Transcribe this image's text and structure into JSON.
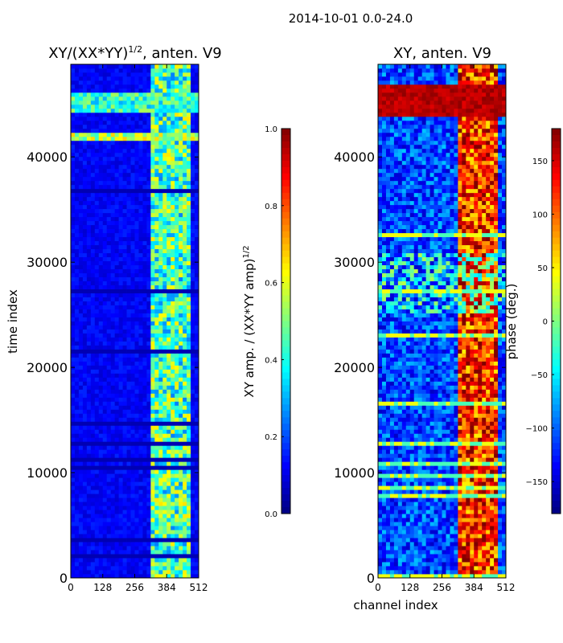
{
  "figure": {
    "suptitle": "2014-10-01 0.0-24.0"
  },
  "chart_data": [
    {
      "type": "heatmap",
      "panel": "left",
      "title_main": "XY/(XX*YY)",
      "title_sup": "1/2",
      "title_suffix": ", anten. V9",
      "ylabel": "time index",
      "xlabel": "",
      "x_range": [
        0,
        512
      ],
      "y_range": [
        0,
        48800
      ],
      "x_ticks": [
        0,
        128,
        256,
        384,
        512
      ],
      "y_ticks": [
        0,
        10000,
        20000,
        30000,
        40000
      ],
      "colormap": "jet",
      "colorbar": {
        "label_main": "XY amp. / (XX*YY amp)",
        "label_sup": "1/2",
        "range": [
          0.0,
          1.0
        ],
        "ticks": [
          "0.0",
          "0.2",
          "0.4",
          "0.6",
          "0.8",
          "1.0"
        ],
        "tick_values": [
          0.0,
          0.2,
          0.4,
          0.6,
          0.8,
          1.0
        ]
      },
      "description_values": {
        "background_level": 0.12,
        "active_channel_start": 325,
        "active_channel_end": 475,
        "active_level": 0.45,
        "bright_time_bands": [
          {
            "t0": 41500,
            "t1": 42200,
            "level": 0.55
          },
          {
            "t0": 44200,
            "t1": 46200,
            "level": 0.42
          }
        ]
      }
    },
    {
      "type": "heatmap",
      "panel": "right",
      "title": "XY, anten. V9",
      "xlabel": "channel index",
      "ylabel": "",
      "x_range": [
        0,
        512
      ],
      "y_range": [
        0,
        48800
      ],
      "x_ticks": [
        0,
        128,
        256,
        384,
        512
      ],
      "y_ticks": [
        0,
        10000,
        20000,
        30000,
        40000
      ],
      "colormap": "jet",
      "colorbar": {
        "label": "phase (deg.)",
        "range": [
          -180,
          180
        ],
        "ticks": [
          "−150",
          "−100",
          "−50",
          "0",
          "50",
          "100",
          "150"
        ],
        "tick_values": [
          -150,
          -100,
          -50,
          0,
          50,
          100,
          150
        ]
      },
      "description_values": {
        "background_phase": -110,
        "active_channel_start": 325,
        "active_channel_end": 475,
        "active_phase": 120,
        "high_phase_band": {
          "t0": 44000,
          "t1": 47000,
          "phase": 160
        }
      }
    }
  ]
}
